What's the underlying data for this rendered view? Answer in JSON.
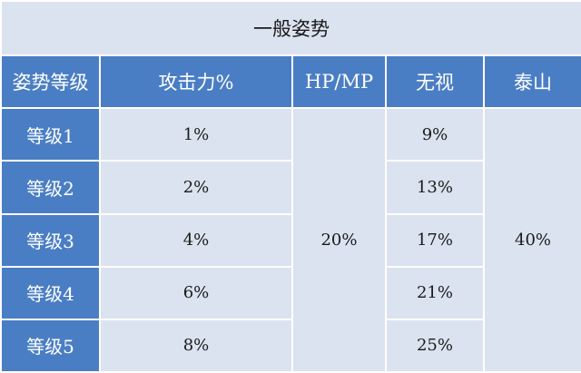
{
  "table": {
    "title": "一般姿势",
    "headers": [
      "姿势等级",
      "攻击力%",
      "HP/MP",
      "无视",
      "泰山"
    ],
    "rows": [
      {
        "level": "等级1",
        "attack": "1%",
        "ignore": "9%"
      },
      {
        "level": "等级2",
        "attack": "2%",
        "ignore": "13%"
      },
      {
        "level": "等级3",
        "attack": "4%",
        "ignore": "17%"
      },
      {
        "level": "等级4",
        "attack": "6%",
        "ignore": "21%"
      },
      {
        "level": "等级5",
        "attack": "8%",
        "ignore": "25%"
      }
    ],
    "hp_mp_value": "20%",
    "taishan_value": "40%"
  },
  "colors": {
    "header_blue": "#4a7ec4",
    "cell_light": "#dbe3f0",
    "border": "#ffffff"
  }
}
